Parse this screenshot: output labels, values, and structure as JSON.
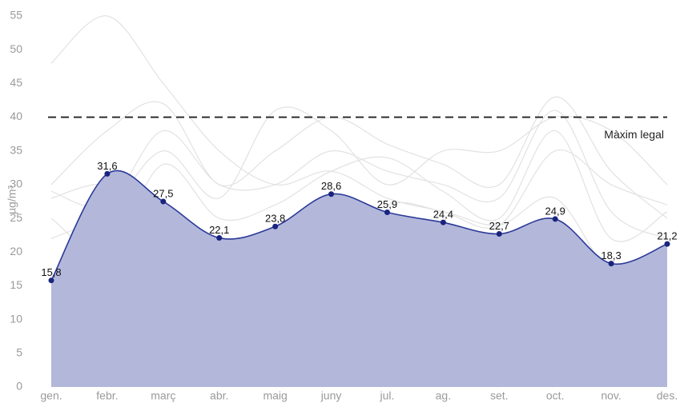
{
  "chart_data": {
    "type": "area",
    "y_label": "µg/m³",
    "categories": [
      "gen.",
      "febr.",
      "març",
      "abr.",
      "maig",
      "juny",
      "jul.",
      "ag.",
      "set.",
      "oct.",
      "nov.",
      "des."
    ],
    "ylim": [
      0,
      55
    ],
    "yticks": [
      0,
      5,
      10,
      15,
      20,
      25,
      30,
      35,
      40,
      45,
      50,
      55
    ],
    "reference_lines": [
      {
        "value": 40,
        "label": "Màxim legal",
        "color": "#222"
      }
    ],
    "series": [
      {
        "color": "#2b3a98",
        "fill": "#b3b8db",
        "point_color": "#1a237e",
        "values": [
          15.8,
          31.6,
          27.5,
          22.1,
          23.8,
          28.6,
          25.9,
          24.4,
          22.7,
          24.9,
          18.3,
          21.2
        ],
        "value_labels": [
          "15,8",
          "31,6",
          "27,5",
          "22,1",
          "23,8",
          "28,6",
          "25,9",
          "24,4",
          "22,7",
          "24,9",
          "18,3",
          "21,2"
        ]
      },
      {
        "color": "#e2e2e2",
        "values": [
          48,
          55,
          45,
          35,
          30,
          32,
          28,
          26,
          24,
          35,
          30,
          27
        ]
      },
      {
        "color": "#e2e2e2",
        "values": [
          30,
          38,
          42,
          30,
          35,
          40,
          36,
          33,
          30,
          43,
          32,
          25
        ]
      },
      {
        "color": "#e2e2e2",
        "values": [
          22,
          26,
          35,
          28,
          41,
          38,
          30,
          35,
          35,
          40,
          38,
          30
        ]
      },
      {
        "color": "#e2e2e2",
        "values": [
          28,
          30,
          25,
          17,
          22,
          20,
          27,
          26,
          24,
          28,
          17,
          18
        ]
      },
      {
        "color": "#e2e2e2",
        "values": [
          25,
          20,
          33,
          25,
          27,
          32,
          34,
          29,
          25,
          38,
          22,
          26
        ]
      },
      {
        "color": "#e2e2e2",
        "values": [
          29,
          27,
          38,
          30,
          30,
          35,
          32,
          30,
          28,
          41,
          26,
          22
        ]
      }
    ]
  }
}
